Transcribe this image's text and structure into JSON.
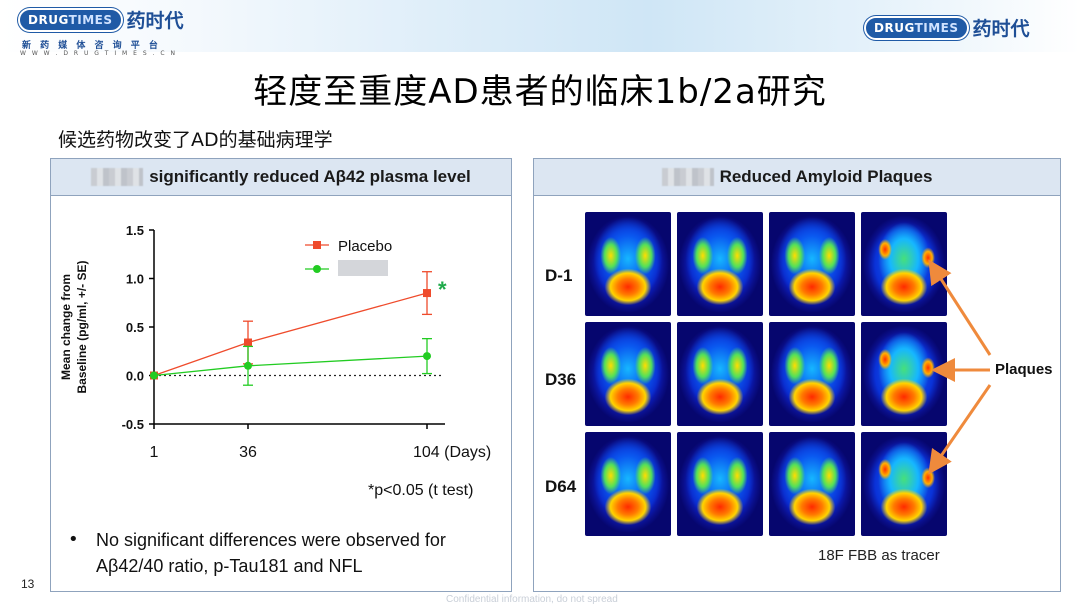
{
  "header": {
    "brand_left": {
      "drug": "DRUG",
      "times": "TIMES",
      "cn": "药时代"
    },
    "brand_sub": "新 药 媒 体 咨 询 平 台",
    "brand_url": "W W W . D R U G T I M E S . C N",
    "brand_right": {
      "drug": "DRUG",
      "times": "TIMES",
      "cn": "药时代"
    }
  },
  "title": "轻度至重度AD患者的临床1b/2a研究",
  "subtitle": "候选药物改变了AD的基础病理学",
  "left_panel": {
    "heading": "significantly reduced Aβ42 plasma level",
    "significance_mark": "*",
    "footnote": "*p<0.05 (t test)",
    "bullet": "No significant differences were observed for  Aβ42/40 ratio, p-Tau181 and NFL"
  },
  "chart_data": {
    "type": "line",
    "ylabel_line1": "Mean change from",
    "ylabel_line2": "Baseline (pg/ml, +/- SE)",
    "x_ticks": [
      "1",
      "36",
      "104 (Days)"
    ],
    "x": [
      1,
      36,
      104
    ],
    "y_ticks": [
      "1.5",
      "1.0",
      "0.5",
      "0.0",
      "-0.5"
    ],
    "ylim": [
      -0.5,
      1.5
    ],
    "series": [
      {
        "name": "Placebo",
        "color": "#ef4b2c",
        "marker": "square",
        "values": [
          0.0,
          0.34,
          0.85
        ],
        "err": [
          0.0,
          0.22,
          0.22
        ]
      },
      {
        "name": "",
        "color": "#22cc22",
        "marker": "circle",
        "values": [
          0.0,
          0.1,
          0.2
        ],
        "err": [
          0.0,
          0.2,
          0.18
        ]
      }
    ],
    "baseline": "dotted at 0.0"
  },
  "right_panel": {
    "heading": "Reduced Amyloid Plaques",
    "rows": [
      "D-1",
      "D36",
      "D64"
    ],
    "plaques_label": "Plaques",
    "tracer": "18F FBB as tracer"
  },
  "footer": {
    "page_number": "13",
    "confidential": "Confidential information, do not spread"
  },
  "colors": {
    "accent": "#1f5aa6",
    "panel_head": "#dce6f2",
    "arrow": "#ef8a3c"
  }
}
